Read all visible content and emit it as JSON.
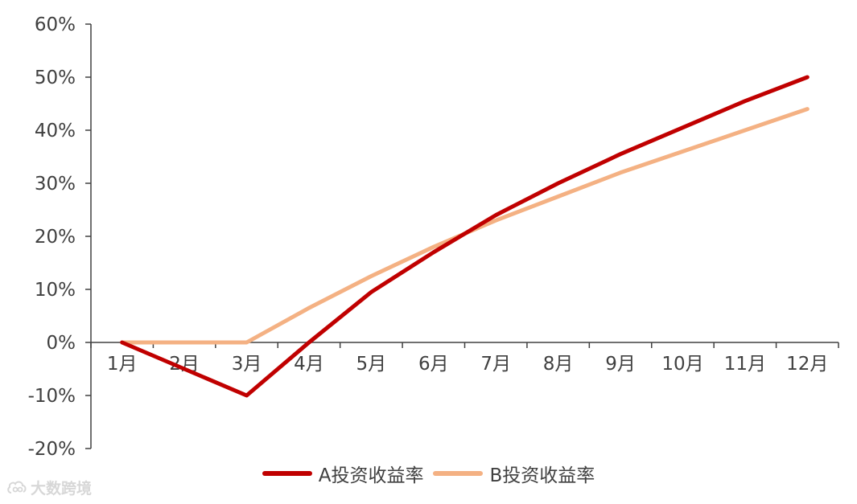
{
  "chart_data": {
    "type": "line",
    "categories": [
      "1月",
      "2月",
      "3月",
      "4月",
      "5月",
      "6月",
      "7月",
      "8月",
      "9月",
      "10月",
      "11月",
      "12月"
    ],
    "series": [
      {
        "name": "A投资收益率",
        "color": "#c00000",
        "values": [
          0,
          -5,
          -10,
          0,
          9.5,
          17,
          24,
          30,
          35.5,
          40.5,
          45.5,
          50
        ]
      },
      {
        "name": "B投资收益率",
        "color": "#f4b183",
        "values": [
          0,
          0,
          0,
          6.5,
          12.5,
          18,
          23,
          27.5,
          32,
          36,
          40,
          44
        ]
      }
    ],
    "yticks": [
      "60%",
      "50%",
      "40%",
      "30%",
      "20%",
      "10%",
      "0%",
      "-10%",
      "-20%"
    ],
    "ylim": [
      -20,
      60
    ],
    "ytick_step": 10,
    "grid": false,
    "legend_position": "bottom",
    "title": "",
    "xlabel": "",
    "ylabel": ""
  },
  "watermark": {
    "text": "大数跨境",
    "icon": "cloud-logo-icon"
  }
}
